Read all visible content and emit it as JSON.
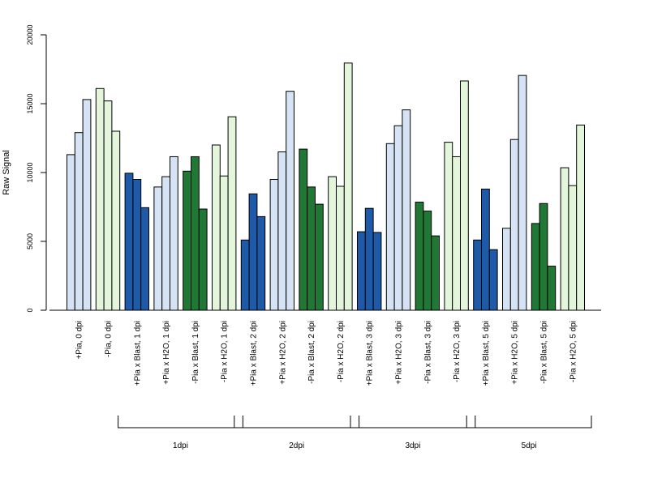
{
  "colors": {
    "light_blue": "#d5e3f5",
    "light_green": "#e3f6dc",
    "dark_blue": "#1f5aa8",
    "dark_green": "#217835",
    "stroke": "#000000"
  },
  "chart_data": {
    "type": "bar",
    "title": "",
    "xlabel": "",
    "ylabel": "Raw Signal",
    "ylim": [
      0,
      20000
    ],
    "yticks": [
      0,
      5000,
      10000,
      15000,
      20000
    ],
    "grid": false,
    "legend": "none",
    "bars_per_category": 3,
    "categories": [
      "+Pia, 0 dpi",
      "-Pia, 0 dpi",
      "+Pia x Blast, 1 dpi",
      "+Pia x H2O, 1 dpi",
      "-Pia x Blast, 1 dpi",
      "-Pia x H2O, 1 dpi",
      "+Pia x Blast, 2 dpi",
      "+Pia x H2O, 2 dpi",
      "-Pia x Blast, 2 dpi",
      "-Pia x H2O, 2 dpi",
      "+Pia x Blast, 3 dpi",
      "+Pia x H2O, 3 dpi",
      "-Pia x Blast, 3 dpi",
      "-Pia x H2O, 3 dpi",
      "+Pia x Blast, 5 dpi",
      "+Pia x H2O, 5 dpi",
      "-Pia x Blast, 5 dpi",
      "-Pia x H2O, 5 dpi"
    ],
    "category_colors": [
      "light_blue",
      "light_green",
      "dark_blue",
      "light_blue",
      "dark_green",
      "light_green",
      "dark_blue",
      "light_blue",
      "dark_green",
      "light_green",
      "dark_blue",
      "light_blue",
      "dark_green",
      "light_green",
      "dark_blue",
      "light_blue",
      "dark_green",
      "light_green"
    ],
    "values": [
      [
        11300,
        12900,
        15300
      ],
      [
        16100,
        15200,
        13000
      ],
      [
        9950,
        9500,
        7450
      ],
      [
        8950,
        9700,
        11150
      ],
      [
        10100,
        11150,
        7350
      ],
      [
        12000,
        9750,
        14050
      ],
      [
        5100,
        8450,
        6800
      ],
      [
        9500,
        11500,
        15900
      ],
      [
        11700,
        8950,
        7700
      ],
      [
        9700,
        9000,
        17950
      ],
      [
        5700,
        7400,
        5650
      ],
      [
        12100,
        13400,
        14550
      ],
      [
        7850,
        7200,
        5400
      ],
      [
        12200,
        11150,
        16650
      ],
      [
        5100,
        8800,
        4400
      ],
      [
        5950,
        12400,
        17050
      ],
      [
        6300,
        7750,
        3200
      ],
      [
        10350,
        9050,
        13450
      ]
    ],
    "groups": [
      {
        "label": "1dpi",
        "first_category": 2,
        "last_category": 5
      },
      {
        "label": "2dpi",
        "first_category": 6,
        "last_category": 9
      },
      {
        "label": "3dpi",
        "first_category": 10,
        "last_category": 13
      },
      {
        "label": "5dpi",
        "first_category": 14,
        "last_category": 17
      }
    ]
  }
}
